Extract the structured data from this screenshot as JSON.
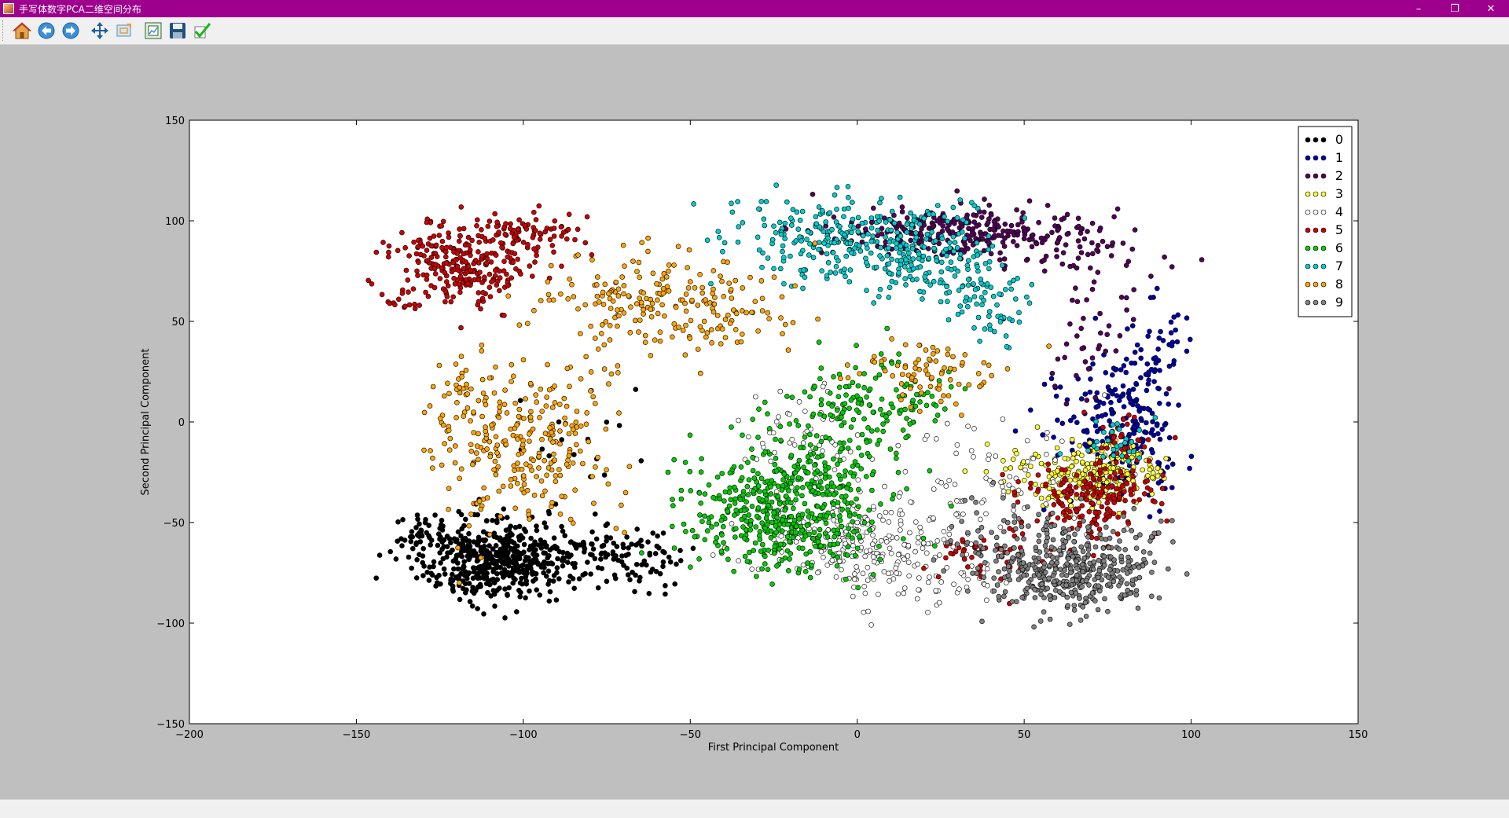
{
  "window": {
    "title": "手写体数字PCA二维空间分布",
    "min_glyph": "–",
    "restore_glyph": "❐",
    "close_glyph": "✕"
  },
  "toolbar": {
    "buttons": [
      {
        "name": "home-button",
        "icon": "home-icon"
      },
      {
        "name": "back-button",
        "icon": "back-arrow-icon"
      },
      {
        "name": "forward-button",
        "icon": "forward-arrow-icon"
      },
      {
        "name": "pan-button",
        "icon": "move-icon"
      },
      {
        "name": "zoom-button",
        "icon": "zoom-rect-icon"
      },
      {
        "name": "subplots-button",
        "icon": "subplots-icon"
      },
      {
        "name": "save-button",
        "icon": "save-icon"
      },
      {
        "name": "edit-button",
        "icon": "check-icon"
      }
    ]
  },
  "chart_data": {
    "type": "scatter",
    "title": "",
    "xlabel": "First Principal Component",
    "ylabel": "Second Principal Component",
    "xlim": [
      -200,
      150
    ],
    "ylim": [
      -150,
      150
    ],
    "xticks": [
      -200,
      -150,
      -100,
      -50,
      0,
      50,
      100,
      150
    ],
    "yticks": [
      -150,
      -100,
      -50,
      0,
      50,
      100,
      150
    ],
    "xtick_labels": [
      "−200",
      "−150",
      "−100",
      "−50",
      "0",
      "50",
      "100",
      "150"
    ],
    "ytick_labels": [
      "−150",
      "−100",
      "−50",
      "0",
      "50",
      "100",
      "150"
    ],
    "grid": false,
    "legend_position": "top-right",
    "series": [
      {
        "name": "0",
        "color": "#000000",
        "clusters": [
          [
            -108,
            -68,
            12,
            10,
            520
          ],
          [
            -130,
            -55,
            4,
            5,
            25
          ],
          [
            -80,
            -65,
            12,
            8,
            80
          ],
          [
            -62,
            -70,
            7,
            8,
            30
          ],
          [
            -75,
            -15,
            10,
            12,
            15
          ]
        ]
      },
      {
        "name": "1",
        "color": "#0000aa",
        "clusters": [
          [
            80,
            -5,
            8,
            18,
            180
          ],
          [
            88,
            35,
            7,
            14,
            50
          ],
          [
            70,
            10,
            12,
            10,
            40
          ]
        ]
      },
      {
        "name": "2",
        "color": "#55005a",
        "clusters": [
          [
            30,
            95,
            18,
            6,
            260
          ],
          [
            65,
            85,
            12,
            10,
            60
          ],
          [
            72,
            45,
            10,
            18,
            40
          ]
        ]
      },
      {
        "name": "3",
        "color": "#ffff33",
        "clusters": [
          [
            75,
            -25,
            8,
            8,
            200
          ],
          [
            60,
            -35,
            6,
            8,
            40
          ],
          [
            50,
            -20,
            6,
            8,
            20
          ]
        ]
      },
      {
        "name": "4",
        "color": "#ffffff",
        "clusters": [
          [
            0,
            -60,
            14,
            12,
            250
          ],
          [
            -15,
            -10,
            10,
            12,
            60
          ],
          [
            40,
            -30,
            15,
            20,
            80
          ],
          [
            25,
            -80,
            12,
            8,
            40
          ]
        ]
      },
      {
        "name": "5",
        "color": "#cc0000",
        "clusters": [
          [
            -117,
            80,
            10,
            10,
            260
          ],
          [
            -97,
            95,
            8,
            6,
            70
          ],
          [
            -135,
            60,
            3,
            4,
            15
          ],
          [
            70,
            -38,
            10,
            8,
            180
          ],
          [
            40,
            -65,
            10,
            8,
            50
          ],
          [
            80,
            -10,
            6,
            6,
            30
          ]
        ]
      },
      {
        "name": "6",
        "color": "#00cc00",
        "clusters": [
          [
            -22,
            -45,
            14,
            15,
            480
          ],
          [
            5,
            10,
            12,
            12,
            140
          ],
          [
            -10,
            -20,
            10,
            12,
            70
          ]
        ]
      },
      {
        "name": "7",
        "color": "#00cccc",
        "clusters": [
          [
            -10,
            90,
            14,
            10,
            180
          ],
          [
            18,
            85,
            12,
            12,
            200
          ],
          [
            40,
            60,
            8,
            12,
            70
          ],
          [
            78,
            -10,
            6,
            6,
            30
          ]
        ]
      },
      {
        "name": "8",
        "color": "#ffa500",
        "clusters": [
          [
            -100,
            -10,
            14,
            20,
            280
          ],
          [
            -65,
            60,
            15,
            12,
            160
          ],
          [
            -35,
            55,
            10,
            12,
            60
          ],
          [
            20,
            25,
            12,
            10,
            80
          ],
          [
            -120,
            10,
            5,
            12,
            20
          ]
        ]
      },
      {
        "name": "9",
        "color": "#808080",
        "clusters": [
          [
            65,
            -75,
            12,
            10,
            360
          ],
          [
            50,
            -60,
            12,
            12,
            90
          ],
          [
            85,
            -60,
            6,
            8,
            20
          ]
        ]
      }
    ]
  }
}
